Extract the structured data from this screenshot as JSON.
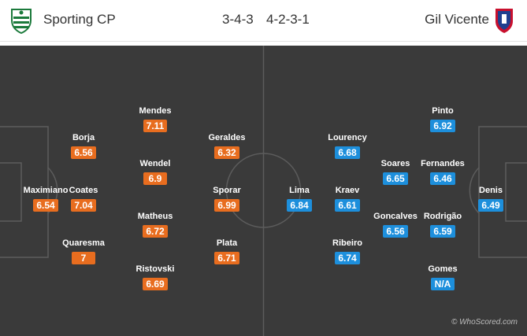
{
  "home": {
    "name": "Sporting CP",
    "formation": "3-4-3",
    "crest_icon": "sporting-crest",
    "color": "#e86d1f",
    "players": [
      {
        "name": "Maximiano",
        "rating": "6.54"
      },
      {
        "name": "Borja",
        "rating": "6.56"
      },
      {
        "name": "Coates",
        "rating": "7.04"
      },
      {
        "name": "Quaresma",
        "rating": "7"
      },
      {
        "name": "Mendes",
        "rating": "7.11"
      },
      {
        "name": "Wendel",
        "rating": "6.9"
      },
      {
        "name": "Matheus",
        "rating": "6.72"
      },
      {
        "name": "Ristovski",
        "rating": "6.69"
      },
      {
        "name": "Geraldes",
        "rating": "6.32"
      },
      {
        "name": "Sporar",
        "rating": "6.99"
      },
      {
        "name": "Plata",
        "rating": "6.71"
      }
    ]
  },
  "away": {
    "name": "Gil Vicente",
    "formation": "4-2-3-1",
    "crest_icon": "gil-vicente-crest",
    "color": "#1d8fdc",
    "players": [
      {
        "name": "Lima",
        "rating": "6.84"
      },
      {
        "name": "Lourency",
        "rating": "6.68"
      },
      {
        "name": "Kraev",
        "rating": "6.61"
      },
      {
        "name": "Ribeiro",
        "rating": "6.74"
      },
      {
        "name": "Soares",
        "rating": "6.65"
      },
      {
        "name": "Goncalves",
        "rating": "6.56"
      },
      {
        "name": "Pinto",
        "rating": "6.92"
      },
      {
        "name": "Fernandes",
        "rating": "6.46"
      },
      {
        "name": "Rodrigão",
        "rating": "6.59"
      },
      {
        "name": "Gomes",
        "rating": "N/A"
      },
      {
        "name": "Denis",
        "rating": "6.49"
      }
    ]
  },
  "watermark": "© WhoScored.com"
}
